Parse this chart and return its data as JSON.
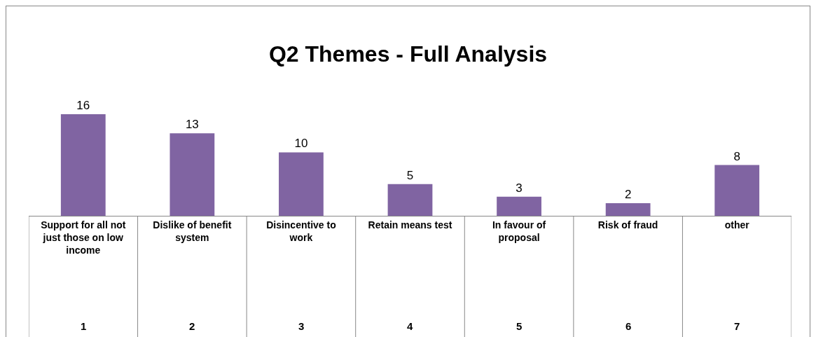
{
  "chart_data": {
    "type": "bar",
    "title": "Q2 Themes - Full Analysis",
    "categories": [
      "Support for all not just those on low income",
      "Dislike of benefit system",
      "Disincentive to work",
      "Retain means test",
      "In favour of proposal",
      "Risk of fraud",
      "other"
    ],
    "values": [
      16,
      13,
      10,
      5,
      3,
      2,
      8
    ],
    "color": "#8064a2",
    "data_labels": true,
    "annotations": [
      "1",
      "2",
      "3",
      "4",
      "5",
      "6",
      "7"
    ]
  }
}
